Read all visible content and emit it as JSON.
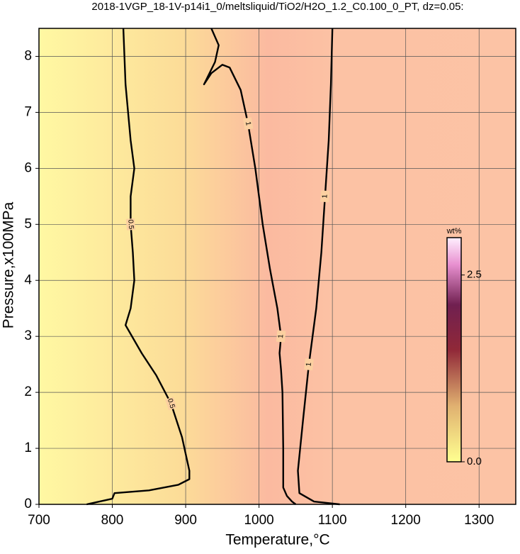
{
  "chart_data": {
    "type": "contour",
    "title": "2018-1VGP_18-1V-p14i1_0/meltsliquid/TiO2/H2O_1.2_C0.100_0_PT, dz=0.05:",
    "x_label": "Temperature,°C",
    "y_label": "Pressure,x100MPa",
    "xlim": [
      700,
      1350
    ],
    "ylim": [
      0,
      8.5
    ],
    "xticks": [
      700,
      800,
      900,
      1000,
      1100,
      1200,
      1300
    ],
    "yticks": [
      0,
      1,
      2,
      3,
      4,
      5,
      6,
      7,
      8
    ],
    "grid": true,
    "colorbar": {
      "label": "wt%",
      "lim": [
        0,
        3
      ],
      "ticks": [
        {
          "value": 0,
          "label": "0.0"
        },
        {
          "value": 2.5,
          "label": "2.5"
        }
      ]
    },
    "contours": [
      {
        "level": 0.5,
        "x": [
          815,
          818,
          825,
          830,
          825,
          825,
          828,
          830,
          825,
          818,
          840,
          860,
          880,
          895,
          905,
          905,
          890,
          850,
          803,
          800,
          765
        ],
        "y": [
          8.5,
          7.5,
          6.5,
          6,
          5.5,
          5,
          4.5,
          4,
          3.5,
          3.2,
          2.7,
          2.3,
          1.8,
          1.2,
          0.6,
          0.45,
          0.35,
          0.25,
          0.2,
          0.1,
          0
        ]
      },
      {
        "level": 1,
        "x": [
          935,
          945,
          940,
          925,
          935,
          950,
          960,
          975,
          985,
          995,
          1005,
          1015,
          1025,
          1030,
          1028,
          1030,
          1032,
          1033,
          1033,
          1038,
          1045,
          1050
        ],
        "y": [
          8.5,
          8.2,
          7.9,
          7.5,
          7.7,
          7.85,
          7.8,
          7.4,
          6.8,
          6,
          5,
          4.2,
          3.5,
          3,
          2.7,
          2.4,
          2,
          1,
          0.3,
          0.15,
          0.05,
          0
        ]
      },
      {
        "level": 1,
        "x": [
          1100,
          1098,
          1095,
          1090,
          1085,
          1078,
          1068,
          1060,
          1053,
          1055,
          1075,
          1110
        ],
        "y": [
          8.5,
          7.5,
          6.5,
          5.5,
          4.5,
          3.5,
          2.5,
          1.5,
          0.6,
          0.2,
          0.05,
          0
        ]
      }
    ]
  }
}
